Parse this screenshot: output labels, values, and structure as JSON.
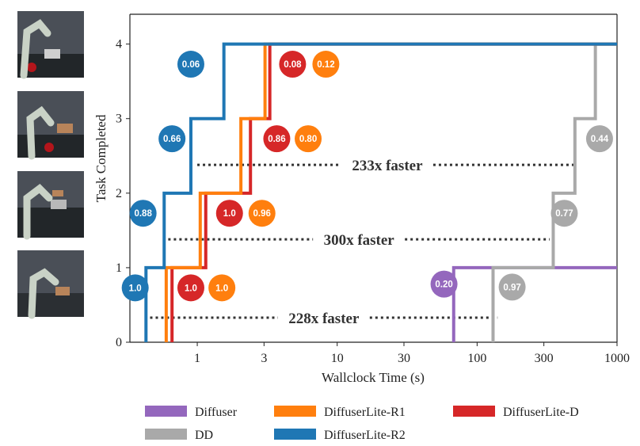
{
  "chart_data": {
    "type": "line",
    "step": true,
    "xlabel": "Wallclock Time (s)",
    "ylabel": "Task Completed",
    "xscale": "log",
    "xlim": [
      0.33,
      1000
    ],
    "ylim": [
      0,
      4.4
    ],
    "xticks": [
      {
        "value": 1,
        "label": "1"
      },
      {
        "value": 3,
        "label": "3"
      },
      {
        "value": 10,
        "label": "10"
      },
      {
        "value": 30,
        "label": "30"
      },
      {
        "value": 100,
        "label": "100"
      },
      {
        "value": 300,
        "label": "300"
      },
      {
        "value": 1000,
        "label": "1000"
      }
    ],
    "yticks": [
      {
        "value": 0,
        "label": "0"
      },
      {
        "value": 1,
        "label": "1"
      },
      {
        "value": 2,
        "label": "2"
      },
      {
        "value": 3,
        "label": "3"
      },
      {
        "value": 4,
        "label": "4"
      }
    ],
    "grid": false,
    "legend_position": "bottom",
    "series": [
      {
        "name": "Diffuser",
        "color": "#9467bd",
        "steps": [
          68
        ],
        "badges": [
          {
            "text": "0.20",
            "x": 58,
            "y": 0.78
          }
        ]
      },
      {
        "name": "DD",
        "color": "#a9a9a9",
        "steps": [
          130,
          350,
          500,
          700
        ],
        "badges": [
          {
            "text": "0.97",
            "x": 178,
            "y": 0.74
          },
          {
            "text": "0.77",
            "x": 420,
            "y": 1.73
          },
          {
            "text": "0.44",
            "x": 750,
            "y": 2.73
          }
        ]
      },
      {
        "name": "DiffuserLite-D",
        "color": "#d62728",
        "steps": [
          0.66,
          1.15,
          2.4,
          3.3
        ],
        "badges": [
          {
            "text": "1.0",
            "x": 0.9,
            "y": 0.73
          },
          {
            "text": "1.0",
            "x": 1.7,
            "y": 1.73
          },
          {
            "text": "0.86",
            "x": 3.7,
            "y": 2.73
          },
          {
            "text": "0.08",
            "x": 4.8,
            "y": 3.73
          }
        ]
      },
      {
        "name": "DiffuserLite-R1",
        "color": "#ff7f0e",
        "steps": [
          0.6,
          1.05,
          2.05,
          3.05
        ],
        "badges": [
          {
            "text": "1.0",
            "x": 1.5,
            "y": 0.73
          },
          {
            "text": "0.96",
            "x": 2.9,
            "y": 1.73
          },
          {
            "text": "0.80",
            "x": 6.2,
            "y": 2.73
          },
          {
            "text": "0.12",
            "x": 8.3,
            "y": 3.73
          }
        ]
      },
      {
        "name": "DiffuserLite-R2",
        "color": "#1f77b4",
        "steps": [
          0.43,
          0.58,
          0.9,
          1.55
        ],
        "badges": [
          {
            "text": "1.0",
            "x": 0.36,
            "y": 0.73
          },
          {
            "text": "0.88",
            "x": 0.41,
            "y": 1.73
          },
          {
            "text": "0.66",
            "x": 0.66,
            "y": 2.73
          },
          {
            "text": "0.06",
            "x": 0.9,
            "y": 3.73
          }
        ]
      }
    ],
    "annotations": [
      {
        "text": "233x faster",
        "y": 2.38,
        "x_start": 1.0,
        "x_end": 520
      },
      {
        "text": "300x faster",
        "y": 1.38,
        "x_start": 0.62,
        "x_end": 330
      },
      {
        "text": "228x faster",
        "y": 0.33,
        "x_start": 0.46,
        "x_end": 140
      }
    ],
    "legend_layout": [
      [
        "Diffuser",
        "DiffuserLite-R1",
        "DiffuserLite-D"
      ],
      [
        "DD",
        "DiffuserLite-R2"
      ]
    ]
  }
}
